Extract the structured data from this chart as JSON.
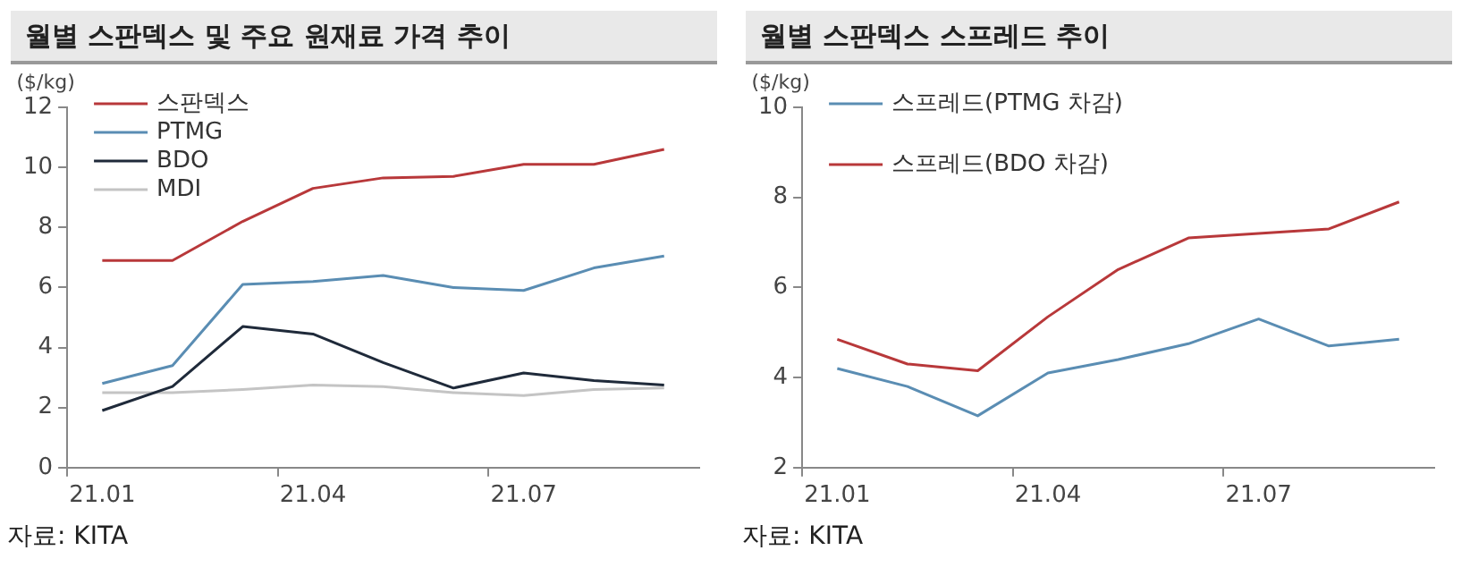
{
  "chart_data": [
    {
      "type": "line",
      "title": "월별 스판덱스 및 주요 원재료 가격 추이",
      "ylabel": "($/kg)",
      "categories": [
        "21.01",
        null,
        null,
        "21.04",
        null,
        null,
        "21.07",
        null,
        null
      ],
      "series": [
        {
          "name": "스판덱스",
          "color": "#b8383a",
          "values": [
            6.9,
            6.9,
            8.2,
            9.3,
            9.65,
            9.7,
            10.1,
            10.1,
            10.6
          ]
        },
        {
          "name": "PTMG",
          "color": "#5a8db3",
          "values": [
            2.8,
            3.4,
            6.1,
            6.2,
            6.4,
            6.0,
            5.9,
            6.65,
            7.05
          ]
        },
        {
          "name": "BDO",
          "color": "#1f2a3a",
          "values": [
            1.9,
            2.7,
            4.7,
            4.45,
            3.5,
            2.65,
            3.15,
            2.9,
            2.75
          ]
        },
        {
          "name": "MDI",
          "color": "#c4c4c4",
          "values": [
            2.5,
            2.5,
            2.6,
            2.75,
            2.7,
            2.5,
            2.4,
            2.6,
            2.65
          ]
        }
      ],
      "ylim": [
        0,
        12
      ],
      "yticks": [
        0,
        2,
        4,
        6,
        8,
        10,
        12
      ],
      "grid": false,
      "legend": "top left",
      "marker": "none",
      "annotations": [
        "자료: KITA"
      ]
    },
    {
      "type": "line",
      "title": "월별 스판덱스 스프레드 추이",
      "ylabel": "($/kg)",
      "categories": [
        "21.01",
        null,
        null,
        "21.04",
        null,
        null,
        "21.07",
        null,
        null
      ],
      "series": [
        {
          "name": "스프레드(PTMG 차감)",
          "color": "#5a8db3",
          "values": [
            4.2,
            3.8,
            3.15,
            4.1,
            4.4,
            4.75,
            5.3,
            4.7,
            4.85
          ]
        },
        {
          "name": "스프레드(BDO 차감)",
          "color": "#b8383a",
          "values": [
            4.85,
            4.3,
            4.15,
            5.35,
            6.4,
            7.1,
            7.2,
            7.3,
            7.9
          ]
        }
      ],
      "ylim": [
        2,
        10
      ],
      "yticks": [
        2,
        4,
        6,
        8,
        10
      ],
      "grid": false,
      "legend": "top left",
      "marker": "none",
      "annotations": [
        "자료: KITA"
      ]
    }
  ]
}
